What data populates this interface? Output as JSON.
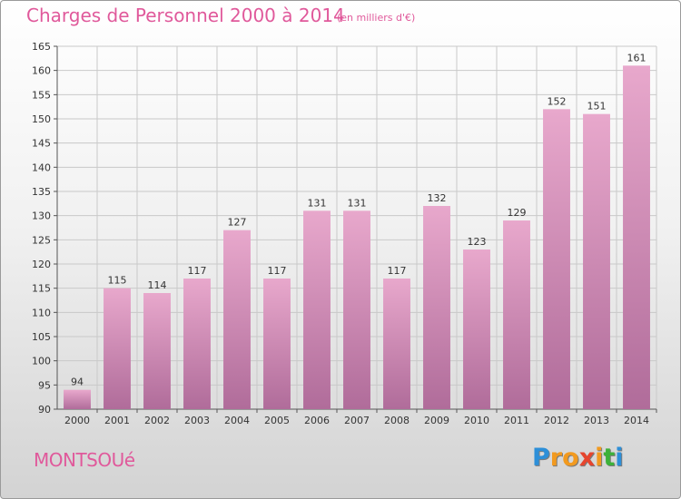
{
  "title": "Charges de Personnel 2000 à 2014",
  "subtitle": "(en milliers d'€)",
  "location": "MONTSOUé",
  "logo": {
    "letters": [
      "P",
      "r",
      "o",
      "x",
      "i",
      "t",
      "i"
    ],
    "colors": [
      "#2d8fd8",
      "#f29a1f",
      "#f29a1f",
      "#e6452e",
      "#f29a1f",
      "#3db13a",
      "#2d8fd8"
    ]
  },
  "colors": {
    "bar": "#d77fb0",
    "bar_top": "#e8a8cc",
    "bar_bottom": "#b06c9a",
    "accent": "#e0599b"
  },
  "chart_data": {
    "type": "bar",
    "categories": [
      "2000",
      "2001",
      "2002",
      "2003",
      "2004",
      "2005",
      "2006",
      "2007",
      "2008",
      "2009",
      "2010",
      "2011",
      "2012",
      "2013",
      "2014"
    ],
    "values": [
      94,
      115,
      114,
      117,
      127,
      117,
      131,
      131,
      117,
      132,
      123,
      129,
      152,
      151,
      161
    ],
    "data_labels": [
      "94",
      "115",
      "114",
      "117",
      "127",
      "117",
      "131",
      "131",
      "117",
      "132",
      "123",
      "129",
      "152",
      "151",
      "161"
    ],
    "ylim": [
      90,
      165
    ],
    "yticks": [
      90,
      95,
      100,
      105,
      110,
      115,
      120,
      125,
      130,
      135,
      140,
      145,
      150,
      155,
      160,
      165
    ],
    "grid": true
  }
}
